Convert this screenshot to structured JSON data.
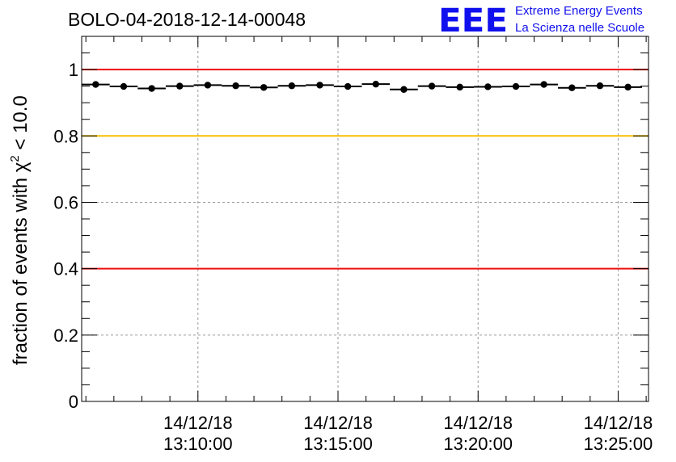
{
  "title": "BOLO-04-2018-12-14-00048",
  "logo": {
    "letters": "EEE",
    "line1": "Extreme Energy Events",
    "line2": "La Scienza nelle Scuole",
    "color": "#1010ee"
  },
  "chart_data": {
    "type": "scatter",
    "title": "BOLO-04-2018-12-14-00048",
    "xlabel": "",
    "ylabel": {
      "prefix": "fraction of events with ",
      "symbol": "χ",
      "superscript": "2",
      "suffix": " < 10.0"
    },
    "ylim": [
      0,
      1.1
    ],
    "yticks": [
      "0",
      "0.2",
      "0.4",
      "0.6",
      "0.8",
      "1"
    ],
    "ytick_values": [
      0,
      0.2,
      0.4,
      0.6,
      0.8,
      1.0
    ],
    "xlim": [
      "2018-12-14 13:05:51",
      "2018-12-14 13:26:05"
    ],
    "xticks": [
      {
        "time": "2018-12-14 13:10:00",
        "date": "14/12/18",
        "clock": "13:10:00"
      },
      {
        "time": "2018-12-14 13:15:00",
        "date": "14/12/18",
        "clock": "13:15:00"
      },
      {
        "time": "2018-12-14 13:20:00",
        "date": "14/12/18",
        "clock": "13:20:00"
      },
      {
        "time": "2018-12-14 13:25:00",
        "date": "14/12/18",
        "clock": "13:25:00"
      }
    ],
    "grid": true,
    "reference_lines": [
      {
        "y": 1.0,
        "color": "#ee1111"
      },
      {
        "y": 0.8,
        "color": "#f5c000"
      },
      {
        "y": 0.4,
        "color": "#ee1111"
      }
    ],
    "series": [
      {
        "x": [
          "2018-12-14 13:06:21",
          "2018-12-14 13:07:21",
          "2018-12-14 13:08:21",
          "2018-12-14 13:09:21",
          "2018-12-14 13:10:21",
          "2018-12-14 13:11:21",
          "2018-12-14 13:12:21",
          "2018-12-14 13:13:21",
          "2018-12-14 13:14:21",
          "2018-12-14 13:15:21",
          "2018-12-14 13:16:21",
          "2018-12-14 13:17:21",
          "2018-12-14 13:18:21",
          "2018-12-14 13:19:21",
          "2018-12-14 13:20:21",
          "2018-12-14 13:21:21",
          "2018-12-14 13:22:21",
          "2018-12-14 13:23:21",
          "2018-12-14 13:24:21",
          "2018-12-14 13:25:21"
        ],
        "values": [
          0.955,
          0.949,
          0.943,
          0.95,
          0.953,
          0.951,
          0.946,
          0.951,
          0.953,
          0.949,
          0.956,
          0.94,
          0.95,
          0.947,
          0.948,
          0.949,
          0.955,
          0.945,
          0.951,
          0.947
        ],
        "bin_width_seconds": 60
      }
    ]
  }
}
